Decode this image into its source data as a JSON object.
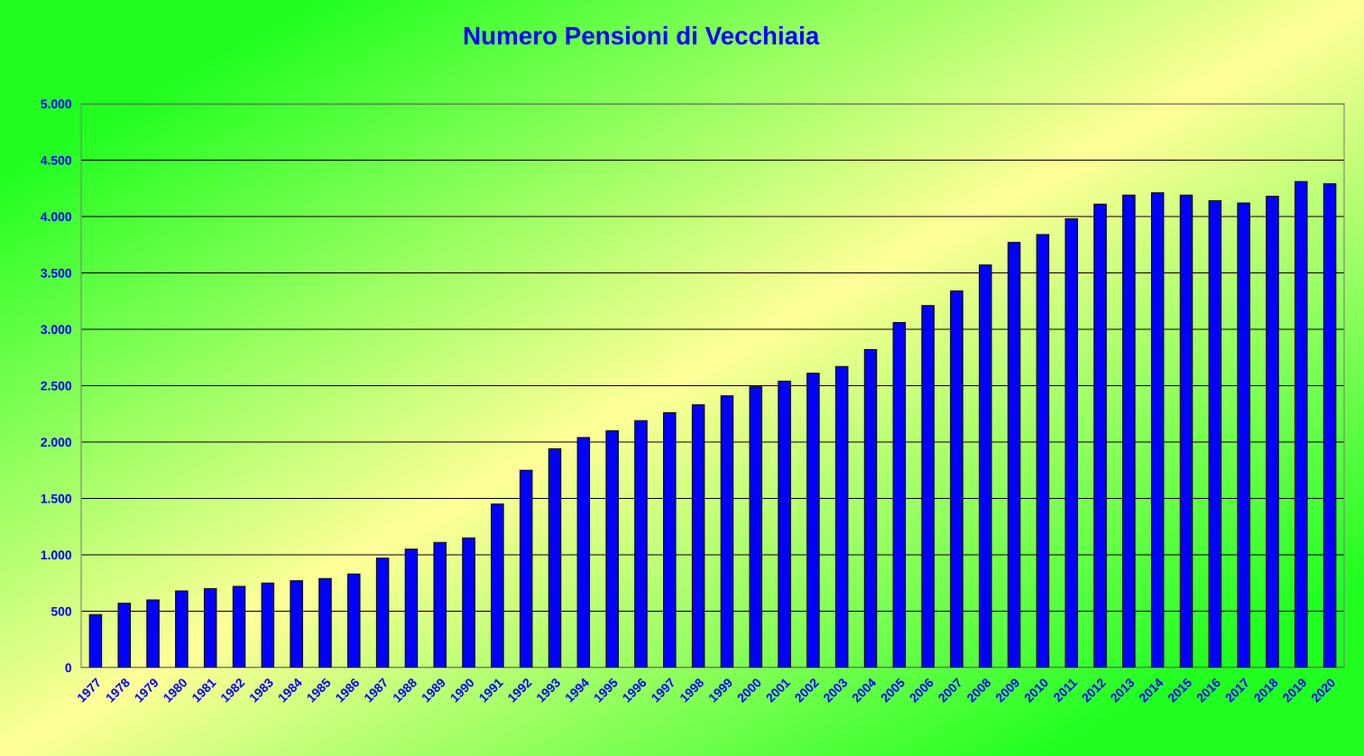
{
  "chart_data": {
    "type": "bar",
    "title": "Numero Pensioni di Vecchiaia",
    "categories": [
      "1977",
      "1978",
      "1979",
      "1980",
      "1981",
      "1982",
      "1983",
      "1984",
      "1985",
      "1986",
      "1987",
      "1988",
      "1989",
      "1990",
      "1991",
      "1992",
      "1993",
      "1994",
      "1995",
      "1996",
      "1997",
      "1998",
      "1999",
      "2000",
      "2001",
      "2002",
      "2003",
      "2004",
      "2005",
      "2006",
      "2007",
      "2008",
      "2009",
      "2010",
      "2011",
      "2012",
      "2013",
      "2014",
      "2015",
      "2016",
      "2017",
      "2018",
      "2019",
      "2020"
    ],
    "values": [
      470,
      570,
      600,
      680,
      700,
      720,
      750,
      770,
      790,
      830,
      970,
      1050,
      1110,
      1150,
      1450,
      1750,
      1940,
      2040,
      2100,
      2190,
      2260,
      2330,
      2410,
      2490,
      2540,
      2610,
      2670,
      2820,
      3060,
      3210,
      3340,
      3570,
      3770,
      3840,
      3980,
      4110,
      4190,
      4210,
      4190,
      4140,
      4120,
      4180,
      4310,
      4290
    ],
    "color": "#0000ff",
    "ylim": [
      0,
      5000
    ],
    "yticks": [
      {
        "value": 0,
        "label": "0"
      },
      {
        "value": 500,
        "label": "500"
      },
      {
        "value": 1000,
        "label": "1.000"
      },
      {
        "value": 1500,
        "label": "1.500"
      },
      {
        "value": 2000,
        "label": "2.000"
      },
      {
        "value": 2500,
        "label": "2.500"
      },
      {
        "value": 3000,
        "label": "3.000"
      },
      {
        "value": 3500,
        "label": "3.500"
      },
      {
        "value": 4000,
        "label": "4.000"
      },
      {
        "value": 4500,
        "label": "4.500"
      },
      {
        "value": 5000,
        "label": "5.000"
      }
    ],
    "grid": "y"
  }
}
